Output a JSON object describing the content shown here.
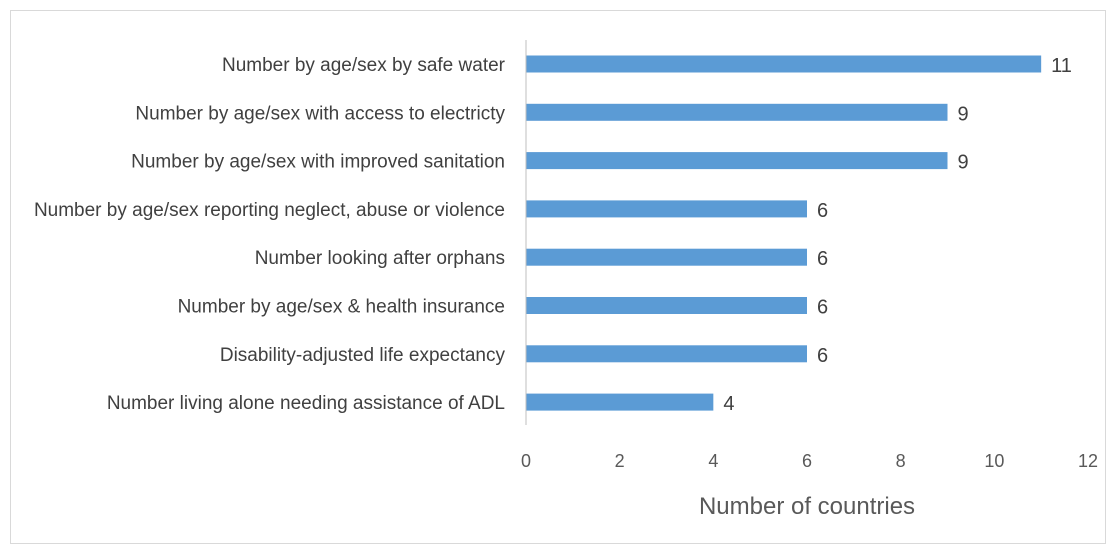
{
  "chart_data": {
    "type": "bar",
    "orientation": "horizontal",
    "categories": [
      "Number by age/sex by safe water",
      "Number by age/sex with access to electricty",
      "Number by age/sex with improved sanitation",
      "Number by age/sex reporting neglect, abuse or violence",
      "Number looking after orphans",
      "Number by age/sex & health insurance",
      "Disability-adjusted life expectancy",
      "Number living alone needing assistance of ADL"
    ],
    "values": [
      11,
      9,
      9,
      6,
      6,
      6,
      6,
      4
    ],
    "xlabel": "Number of countries",
    "ylabel": "",
    "xlim": [
      0,
      12
    ],
    "xticks": [
      0,
      2,
      4,
      6,
      8,
      10,
      12
    ],
    "bar_color": "#5b9bd5",
    "grid": false,
    "data_labels": true
  }
}
